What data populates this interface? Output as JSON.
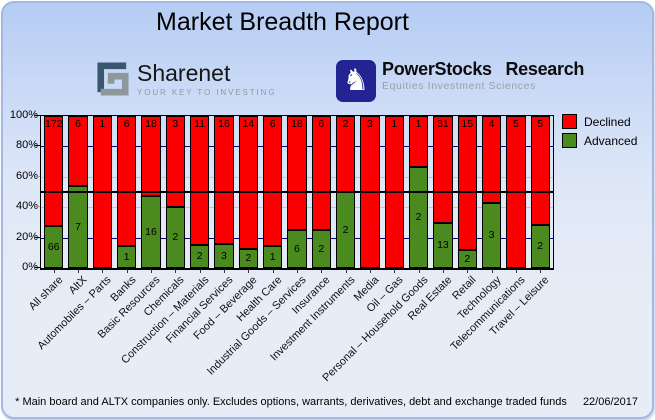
{
  "title": "Market Breadth Report",
  "logos": {
    "sharenet": {
      "name": "Sharenet",
      "tagline": "YOUR KEY TO INVESTING"
    },
    "powerstocks": {
      "name": "PowerStocks Research",
      "tagline": "Equities Investment Sciences",
      "knight_icon": "chess-knight"
    }
  },
  "legend": [
    {
      "label": "Declined",
      "color": "#fb0000"
    },
    {
      "label": "Advanced",
      "color": "#4a8a1e"
    }
  ],
  "footer": {
    "note": "* Main board and ALTX companies only. Excludes options, warrants, derivatives, debt and exchange traded funds",
    "date": "22/06/2017"
  },
  "chart_data": {
    "type": "bar",
    "stacked": true,
    "normalized_to_percent": true,
    "title": "Market Breadth Report",
    "categories": [
      "All share",
      "AltX",
      "Automobiles – Parts",
      "Banks",
      "Basic Resources",
      "Chemicals",
      "Construction – Materials",
      "Financial Services",
      "Food – Beverage",
      "Health Care",
      "Industrial Goods – Services",
      "Insurance",
      "Investment Instruments",
      "Media",
      "Oil – Gas",
      "Personal – Household Goods",
      "Real Estate",
      "Retail",
      "Technology",
      "Telecommunications",
      "Travel – Leisure"
    ],
    "series": [
      {
        "name": "Declined",
        "color": "#fb0000",
        "values": [
          172,
          6,
          1,
          6,
          18,
          3,
          11,
          16,
          14,
          6,
          18,
          6,
          2,
          3,
          1,
          1,
          31,
          15,
          4,
          5,
          5
        ]
      },
      {
        "name": "Advanced",
        "color": "#4a8a1e",
        "values": [
          66,
          7,
          0,
          1,
          16,
          2,
          2,
          3,
          2,
          1,
          6,
          2,
          2,
          0,
          0,
          2,
          13,
          2,
          3,
          0,
          2
        ]
      }
    ],
    "ylabel": "",
    "xlabel": "",
    "y_ticks": [
      "0%",
      "20%",
      "40%",
      "60%",
      "80%",
      "100%"
    ],
    "ylim": [
      0,
      100
    ],
    "reference_line_percent": 50,
    "legend_position": "top-right",
    "gridlines": {
      "navy_at": [
        80,
        20
      ],
      "gray_at": [
        60,
        40
      ],
      "black_at": [
        50
      ]
    },
    "bar_labels": "counts shown inside segments"
  }
}
